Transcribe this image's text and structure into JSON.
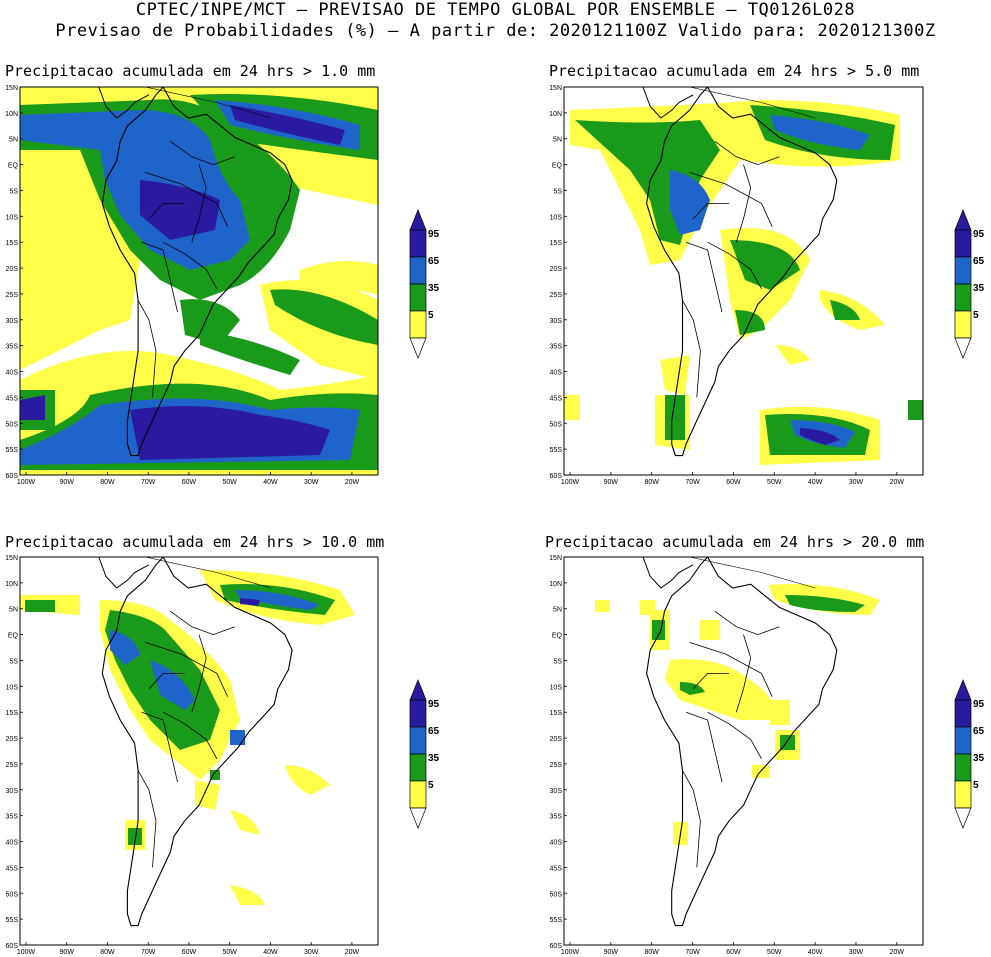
{
  "header": {
    "line1": "CPTEC/INPE/MCT – PREVISAO DE TEMPO GLOBAL POR ENSEMBLE – TQ0126L028",
    "line2": "Previsao de Probabilidades (%) –  A partir de: 2020121100Z  Valido para: 2020121300Z"
  },
  "colors": {
    "c5": "#ffff4a",
    "c35": "#1a9a1a",
    "c65": "#1f64c8",
    "c95": "#2a1aa0",
    "land_line": "#000000"
  },
  "axes": {
    "lat_labels": [
      "15N",
      "10N",
      "5N",
      "EQ",
      "5S",
      "10S",
      "15S",
      "20S",
      "25S",
      "30S",
      "35S",
      "40S",
      "45S",
      "50S",
      "55S",
      "60S"
    ],
    "lon_labels": [
      "100W",
      "90W",
      "80W",
      "70W",
      "60W",
      "50W",
      "40W",
      "30W",
      "20W"
    ]
  },
  "legend": {
    "levels": [
      "95",
      "65",
      "35",
      "5"
    ]
  },
  "panels": [
    {
      "title": "Precipitacao acumulada em 24 hrs > 1.0 mm"
    },
    {
      "title": "Precipitacao acumulada em 24 hrs > 5.0 mm"
    },
    {
      "title": "Precipitacao acumulada em 24 hrs > 10.0 mm"
    },
    {
      "title": "Precipitacao acumulada em 24 hrs > 20.0 mm"
    }
  ]
}
